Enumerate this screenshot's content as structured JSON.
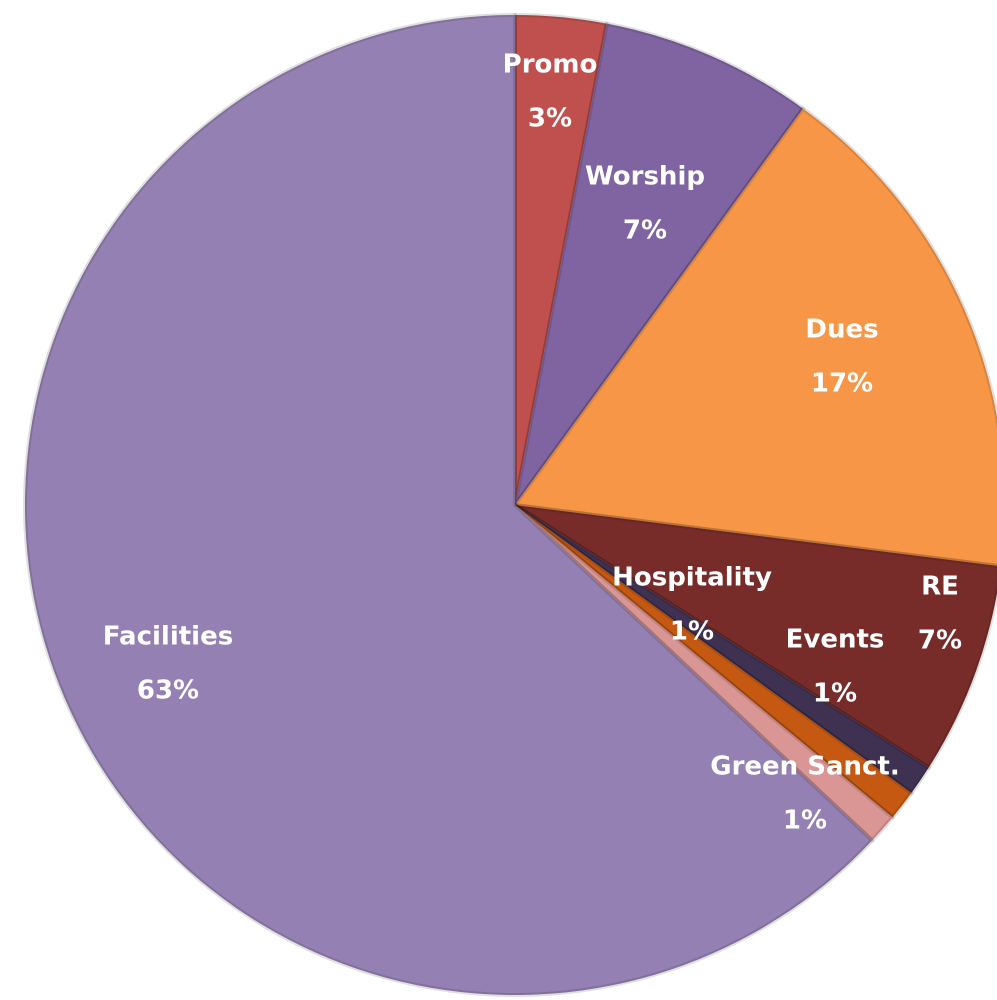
{
  "chart_data": {
    "type": "pie",
    "categories": [
      "Promo",
      "Worship",
      "Dues",
      "RE",
      "Events",
      "Green Sanct.",
      "Hospitality",
      "Facilities"
    ],
    "values": [
      3,
      7,
      17,
      7,
      1,
      1,
      1,
      63
    ],
    "value_labels": [
      "3%",
      "7%",
      "17%",
      "7%",
      "1%",
      "1%",
      "1%",
      "63%"
    ],
    "colors": [
      "#c0504d",
      "#8064a2",
      "#f79646",
      "#772c2a",
      "#3f3151",
      "#c65911",
      "#d99694",
      "#9480b2"
    ]
  }
}
